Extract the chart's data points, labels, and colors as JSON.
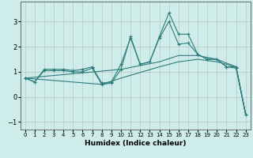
{
  "xlabel": "Humidex (Indice chaleur)",
  "background_color": "#ceecea",
  "grid_color": "#b0b0b0",
  "line_color": "#2d7d7d",
  "xlim": [
    -0.5,
    23.5
  ],
  "ylim": [
    -1.3,
    3.8
  ],
  "xticks": [
    0,
    1,
    2,
    3,
    4,
    5,
    6,
    7,
    8,
    9,
    10,
    11,
    12,
    13,
    14,
    15,
    16,
    17,
    18,
    19,
    20,
    21,
    22,
    23
  ],
  "yticks": [
    -1,
    0,
    1,
    2,
    3
  ],
  "lines": [
    {
      "x": [
        0,
        1,
        2,
        3,
        4,
        5,
        6,
        7,
        8,
        9,
        10,
        11,
        12,
        13,
        14,
        15,
        16,
        17,
        18,
        19,
        20,
        21,
        22,
        23
      ],
      "y": [
        0.75,
        0.6,
        1.1,
        1.1,
        1.1,
        1.05,
        1.1,
        1.2,
        0.55,
        0.6,
        1.3,
        2.35,
        1.3,
        1.4,
        2.35,
        3.0,
        2.1,
        2.15,
        1.7,
        1.5,
        1.5,
        1.2,
        1.2,
        -0.7
      ],
      "marker": true,
      "markersize": 2.5
    },
    {
      "x": [
        0,
        1,
        2,
        3,
        4,
        5,
        6,
        7,
        8,
        9,
        10,
        11,
        12,
        13,
        14,
        15,
        16,
        17,
        18,
        19,
        20,
        21,
        22,
        23
      ],
      "y": [
        0.75,
        0.6,
        1.05,
        1.05,
        1.05,
        1.0,
        1.0,
        1.15,
        0.5,
        0.55,
        1.1,
        2.4,
        1.3,
        1.4,
        2.4,
        3.35,
        2.5,
        2.5,
        1.7,
        1.5,
        1.5,
        1.2,
        1.15,
        -0.7
      ],
      "marker": true,
      "markersize": 2.5
    },
    {
      "x": [
        0,
        10,
        14,
        16,
        18,
        20,
        21,
        22,
        23
      ],
      "y": [
        0.75,
        1.1,
        1.4,
        1.65,
        1.65,
        1.5,
        1.35,
        1.2,
        -0.7
      ],
      "marker": false,
      "markersize": 0
    },
    {
      "x": [
        0,
        8,
        10,
        14,
        16,
        18,
        20,
        22,
        23
      ],
      "y": [
        0.75,
        0.5,
        0.75,
        1.2,
        1.4,
        1.5,
        1.4,
        1.2,
        -0.7
      ],
      "marker": false,
      "markersize": 0
    }
  ]
}
